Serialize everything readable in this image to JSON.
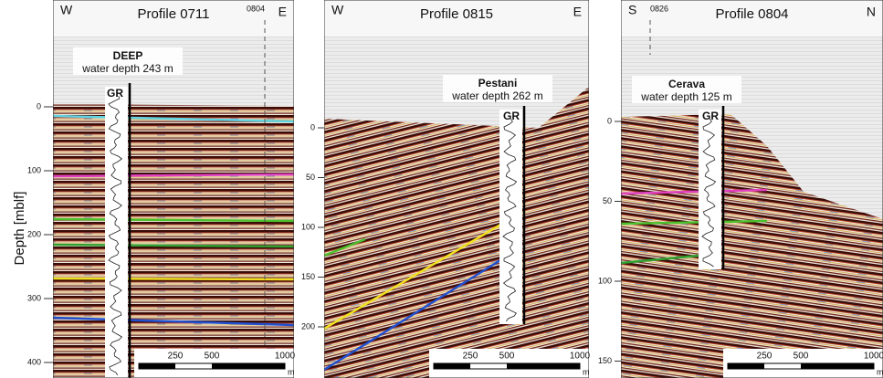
{
  "y_axis_label": "Depth [mblf]",
  "panels": [
    {
      "left": "W",
      "title": "Profile 0711",
      "crossing": "0804",
      "right": "E",
      "well": "DEEP",
      "water_depth": "water depth 243 m",
      "log": "GR",
      "yticks": [
        0,
        100,
        200,
        300,
        400
      ],
      "scale": [
        "250",
        "500",
        "1000"
      ],
      "scale_unit": "m"
    },
    {
      "left": "W",
      "title": "Profile 0815",
      "right": "E",
      "well": "Pestani",
      "water_depth": "water depth 262 m",
      "log": "GR",
      "yticks": [
        0,
        50,
        100,
        150,
        200
      ],
      "scale": [
        "250",
        "500",
        "1000"
      ],
      "scale_unit": "m"
    },
    {
      "left": "S",
      "title": "Profile 0804",
      "crossing": "0826",
      "right": "N",
      "well": "Cerava",
      "water_depth": "water depth 125 m",
      "log": "GR",
      "yticks": [
        0,
        50,
        100,
        150
      ],
      "scale": [
        "250",
        "500",
        "1000"
      ],
      "scale_unit": "m"
    }
  ]
}
